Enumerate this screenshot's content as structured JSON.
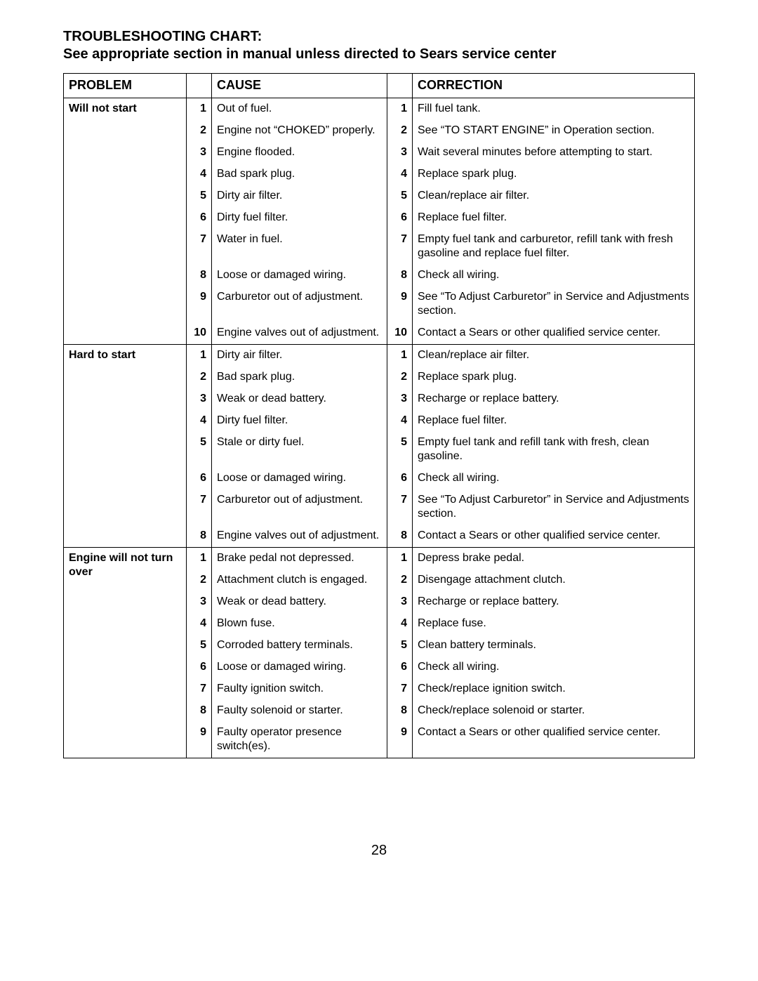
{
  "title": "TROUBLESHOOTING CHART:",
  "subtitle": "See appropriate section in manual unless directed to Sears service center",
  "page_number": "28",
  "headers": {
    "problem": "PROBLEM",
    "cause": "CAUSE",
    "correction": "CORRECTION"
  },
  "groups": [
    {
      "problem": "Will not start",
      "rows": [
        {
          "n": "1",
          "cause": "Out of fuel.",
          "corr": "Fill fuel tank."
        },
        {
          "n": "2",
          "cause": "Engine not “CHOKED” properly.",
          "corr": "See “TO START ENGINE” in Operation section."
        },
        {
          "n": "3",
          "cause": "Engine flooded.",
          "corr": "Wait several minutes before attempting to start."
        },
        {
          "n": "4",
          "cause": "Bad spark plug.",
          "corr": "Replace spark plug."
        },
        {
          "n": "5",
          "cause": "Dirty air filter.",
          "corr": "Clean/replace air filter."
        },
        {
          "n": "6",
          "cause": "Dirty fuel filter.",
          "corr": "Replace fuel filter."
        },
        {
          "n": "7",
          "cause": "Water in fuel.",
          "corr": "Empty fuel tank and carburetor, refill tank with fresh gasoline and replace fuel filter."
        },
        {
          "n": "8",
          "cause": "Loose or damaged wiring.",
          "corr": "Check all wiring."
        },
        {
          "n": "9",
          "cause": "Carburetor out of adjustment.",
          "corr": "See “To Adjust Carburetor” in Service and Adjustments section."
        },
        {
          "n": "10",
          "cause": "Engine valves out of adjustment.",
          "corr": "Contact a Sears or other qualified service center."
        }
      ]
    },
    {
      "problem": "Hard to start",
      "rows": [
        {
          "n": "1",
          "cause": "Dirty air filter.",
          "corr": "Clean/replace air filter."
        },
        {
          "n": "2",
          "cause": "Bad spark plug.",
          "corr": "Replace spark plug."
        },
        {
          "n": "3",
          "cause": "Weak or dead battery.",
          "corr": "Recharge or replace battery."
        },
        {
          "n": "4",
          "cause": "Dirty fuel filter.",
          "corr": "Replace fuel filter."
        },
        {
          "n": "5",
          "cause": "Stale or dirty fuel.",
          "corr": "Empty fuel tank and refill tank with fresh, clean gasoline."
        },
        {
          "n": "6",
          "cause": "Loose or damaged wiring.",
          "corr": "Check all wiring."
        },
        {
          "n": "7",
          "cause": "Carburetor out of adjustment.",
          "corr": "See “To Adjust Carburetor” in Service and Adjustments section."
        },
        {
          "n": "8",
          "cause": "Engine valves out of adjustment.",
          "corr": "Contact a Sears or other qualified service center."
        }
      ]
    },
    {
      "problem": "Engine will not turn over",
      "rows": [
        {
          "n": "1",
          "cause": "Brake pedal not depressed.",
          "corr": "Depress brake pedal."
        },
        {
          "n": "2",
          "cause": "Attachment clutch is engaged.",
          "corr": "Disengage attachment clutch."
        },
        {
          "n": "3",
          "cause": "Weak or dead battery.",
          "corr": "Recharge or replace battery."
        },
        {
          "n": "4",
          "cause": "Blown fuse.",
          "corr": "Replace fuse."
        },
        {
          "n": "5",
          "cause": "Corroded battery terminals.",
          "corr": "Clean battery terminals."
        },
        {
          "n": "6",
          "cause": "Loose or damaged wiring.",
          "corr": "Check all wiring."
        },
        {
          "n": "7",
          "cause": "Faulty ignition switch.",
          "corr": "Check/replace ignition switch."
        },
        {
          "n": "8",
          "cause": "Faulty solenoid or starter.",
          "corr": "Check/replace solenoid or starter."
        },
        {
          "n": "9",
          "cause": "Faulty operator presence switch(es).",
          "corr": "Contact a Sears or other qualified service center."
        }
      ]
    }
  ]
}
